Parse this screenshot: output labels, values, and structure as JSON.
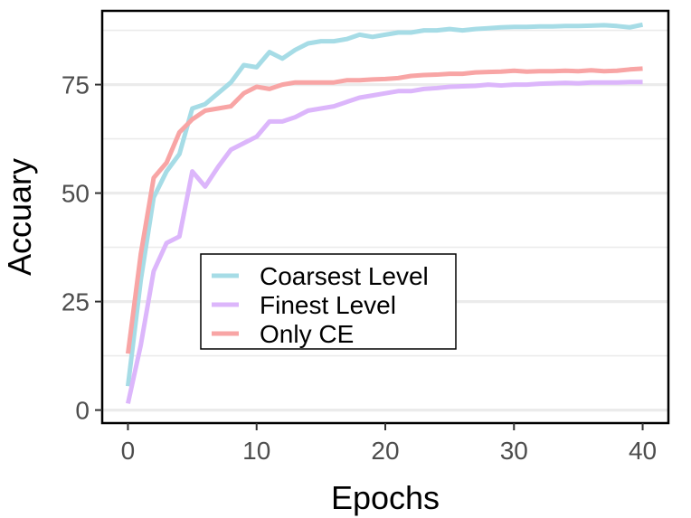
{
  "chart_data": {
    "type": "line",
    "title": "",
    "xlabel": "Epochs",
    "ylabel": "Accuary",
    "xlim": [
      -2,
      42
    ],
    "ylim": [
      -3,
      92
    ],
    "x_ticks": [
      0,
      10,
      20,
      30,
      40
    ],
    "y_ticks": [
      0,
      25,
      50,
      75
    ],
    "x_minor": [
      5,
      15,
      25,
      35
    ],
    "y_minor": [
      12.5,
      37.5,
      62.5,
      87.5
    ],
    "grid": true,
    "legend_position": "center-left",
    "x": [
      0,
      1,
      2,
      3,
      4,
      5,
      6,
      7,
      8,
      9,
      10,
      11,
      12,
      13,
      14,
      15,
      16,
      17,
      18,
      19,
      20,
      21,
      22,
      23,
      24,
      25,
      26,
      27,
      28,
      29,
      30,
      31,
      32,
      33,
      34,
      35,
      36,
      37,
      38,
      39,
      40
    ],
    "series": [
      {
        "name": "Coarsest Level",
        "color": "#a6dce6",
        "values": [
          5.5,
          30,
          49,
          55,
          59,
          69.5,
          70.5,
          73,
          75.5,
          79.5,
          79,
          82.5,
          81,
          83,
          84.5,
          85,
          85,
          85.5,
          86.5,
          86,
          86.5,
          87,
          87,
          87.5,
          87.5,
          87.8,
          87.5,
          87.8,
          88,
          88.2,
          88.3,
          88.3,
          88.4,
          88.4,
          88.5,
          88.5,
          88.6,
          88.7,
          88.5,
          88.2,
          88.8
        ]
      },
      {
        "name": "Finest Level",
        "color": "#dcb6fb",
        "values": [
          1.5,
          15,
          32,
          38.5,
          40,
          55,
          51.5,
          56,
          60,
          61.5,
          63,
          66.5,
          66.5,
          67.5,
          69,
          69.5,
          70,
          71,
          72,
          72.5,
          73,
          73.5,
          73.5,
          74,
          74.2,
          74.5,
          74.6,
          74.7,
          75,
          74.8,
          75,
          75,
          75.2,
          75.3,
          75.4,
          75.3,
          75.5,
          75.5,
          75.5,
          75.6,
          75.6
        ]
      },
      {
        "name": "Only CE",
        "color": "#f8a5a5",
        "values": [
          13,
          36,
          53.5,
          57,
          64,
          67,
          69,
          69.5,
          70,
          73,
          74.5,
          74,
          75,
          75.5,
          75.5,
          75.5,
          75.5,
          76,
          76,
          76.2,
          76.3,
          76.5,
          77,
          77.2,
          77.3,
          77.5,
          77.5,
          77.8,
          77.9,
          78,
          78.2,
          78,
          78.1,
          78.1,
          78.2,
          78.1,
          78.3,
          78.1,
          78.2,
          78.5,
          78.7
        ]
      }
    ]
  }
}
